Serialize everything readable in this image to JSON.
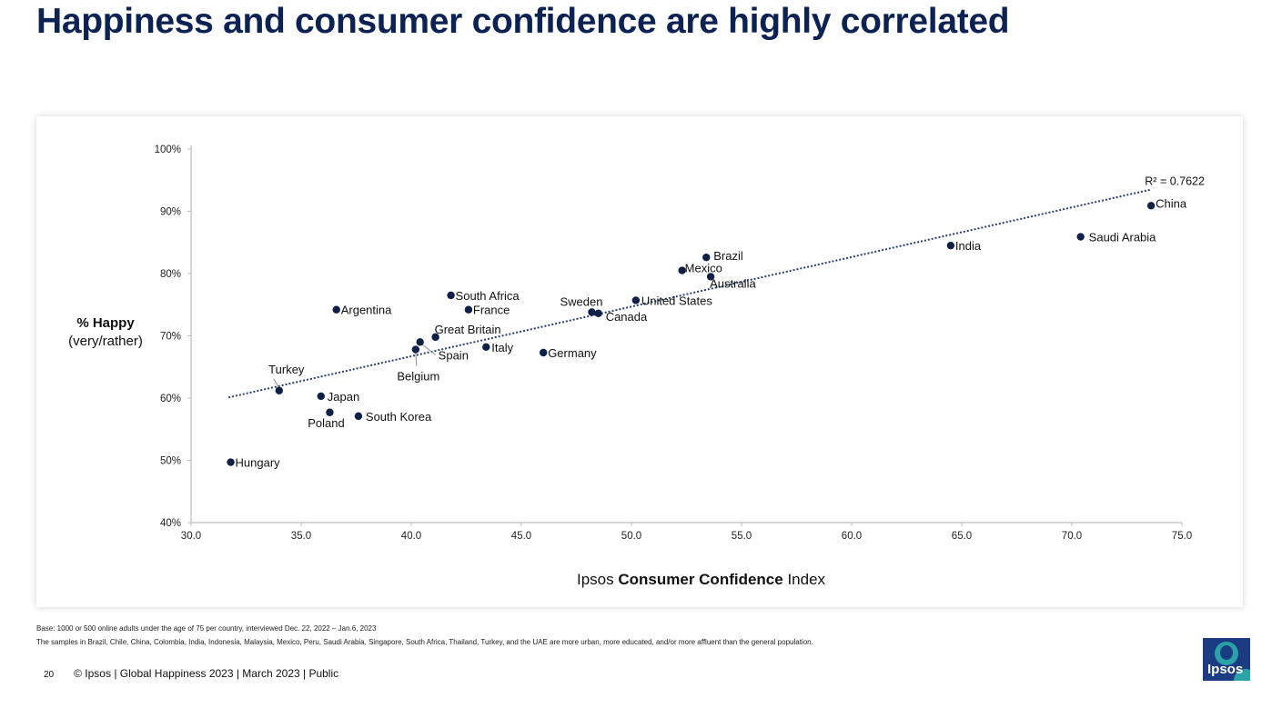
{
  "slide": {
    "title": "Happiness and consumer confidence are highly correlated",
    "base_note": "Base: 1000 or 500 online adults under the age of 75 per country, interviewed Dec. 22, 2022 – Jan.6, 2023",
    "sample_note": "The samples in Brazil, Chile, China, Colombia, India, Indonesia, Malaysia, Mexico, Peru, Saudi Arabia, Singapore, South Africa, Thailand, Turkey, and the UAE are more urban, more educated, and/or more affluent than the general population.",
    "page_number": "20",
    "footer_text": "© Ipsos | Global Happiness 2023 | March 2023 | Public",
    "logo_text": "Ipsos"
  },
  "colors": {
    "title": "#0b2252",
    "point": "#0e1f48",
    "trend": "#2b3f73"
  },
  "chart_data": {
    "type": "scatter",
    "xlabel_prefix": "Ipsos ",
    "xlabel_bold": "Consumer Confidence",
    "xlabel_suffix": " Index",
    "ylabel": "% Happy",
    "ylabel_sub": "(very/rather)",
    "xlim": [
      30,
      75
    ],
    "ylim": [
      40,
      100
    ],
    "x_ticks": [
      "30.0",
      "35.0",
      "40.0",
      "45.0",
      "50.0",
      "55.0",
      "60.0",
      "65.0",
      "70.0",
      "75.0"
    ],
    "x_tick_values": [
      30,
      35,
      40,
      45,
      50,
      55,
      60,
      65,
      70,
      75
    ],
    "y_ticks": [
      "40%",
      "50%",
      "60%",
      "70%",
      "80%",
      "90%",
      "100%"
    ],
    "y_tick_values": [
      40,
      50,
      60,
      70,
      80,
      90,
      100
    ],
    "trendline": {
      "x": [
        31.7,
        73.6
      ],
      "y": [
        60.1,
        93.5
      ],
      "label": "R² = 0.7622"
    },
    "points": [
      {
        "name": "Hungary",
        "x": 31.8,
        "y": 49.7
      },
      {
        "name": "Turkey",
        "x": 34.0,
        "y": 61.2
      },
      {
        "name": "Japan",
        "x": 35.9,
        "y": 60.3
      },
      {
        "name": "Poland",
        "x": 36.3,
        "y": 57.7
      },
      {
        "name": "South Korea",
        "x": 37.6,
        "y": 57.1
      },
      {
        "name": "Argentina",
        "x": 36.6,
        "y": 74.2
      },
      {
        "name": "Belgium",
        "x": 40.2,
        "y": 67.8
      },
      {
        "name": "Spain",
        "x": 40.4,
        "y": 69.0
      },
      {
        "name": "Great Britain",
        "x": 41.1,
        "y": 69.8
      },
      {
        "name": "South Africa",
        "x": 41.8,
        "y": 76.5
      },
      {
        "name": "France",
        "x": 42.6,
        "y": 74.2
      },
      {
        "name": "Italy",
        "x": 43.4,
        "y": 68.2
      },
      {
        "name": "Germany",
        "x": 46.0,
        "y": 67.3
      },
      {
        "name": "Sweden",
        "x": 48.2,
        "y": 73.8
      },
      {
        "name": "Canada",
        "x": 48.5,
        "y": 73.6
      },
      {
        "name": "United States",
        "x": 50.2,
        "y": 75.7
      },
      {
        "name": "Mexico",
        "x": 52.3,
        "y": 80.5
      },
      {
        "name": "Brazil",
        "x": 53.4,
        "y": 82.6
      },
      {
        "name": "Australia",
        "x": 53.6,
        "y": 79.5
      },
      {
        "name": "India",
        "x": 64.5,
        "y": 84.5
      },
      {
        "name": "Saudi Arabia",
        "x": 70.4,
        "y": 85.9
      },
      {
        "name": "China",
        "x": 73.6,
        "y": 90.9
      }
    ]
  }
}
